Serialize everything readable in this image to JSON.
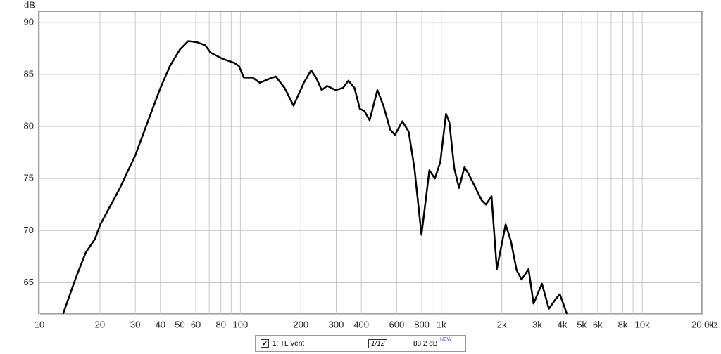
{
  "chart_data": {
    "type": "line",
    "y_label": "dB",
    "x_label": "Hz",
    "xlim": [
      10,
      20000
    ],
    "ylim": [
      62,
      91
    ],
    "log_x": true,
    "grid": true,
    "yticks": [
      65,
      70,
      75,
      80,
      85,
      90
    ],
    "xticks": [
      10,
      20,
      30,
      40,
      50,
      60,
      80,
      100,
      200,
      300,
      400,
      600,
      800,
      {
        "value": 1000,
        "label": "1k"
      },
      {
        "value": 2000,
        "label": "2k"
      },
      {
        "value": 3000,
        "label": "3k"
      },
      {
        "value": 4000,
        "label": "4k"
      },
      {
        "value": 5000,
        "label": "5k"
      },
      {
        "value": 6000,
        "label": "6k"
      },
      {
        "value": 8000,
        "label": "8k"
      },
      {
        "value": 10000,
        "label": "10k"
      },
      {
        "value": 20000,
        "label": "20.0k"
      }
    ],
    "x_minor_gridlines": [
      70,
      90,
      700,
      900,
      7000,
      9000
    ],
    "series": [
      {
        "name": "1: TL Vent",
        "color": "#000000",
        "x": [
          13.1,
          15.2,
          17,
          18.9,
          20.1,
          25,
          30.1,
          34.5,
          40,
          44.6,
          50,
          55,
          60.7,
          66.8,
          71,
          81.5,
          93.5,
          98.5,
          104,
          115,
          125,
          140,
          150,
          166,
          184,
          207,
          225,
          238,
          254,
          270,
          298,
          324,
          345,
          370,
          393,
          414,
          440,
          481,
          515,
          557,
          588,
          640,
          688,
          735,
          797,
          872,
          929,
          989,
          1055,
          1097,
          1160,
          1225,
          1305,
          1380,
          1490,
          1590,
          1668,
          1778,
          1890,
          2090,
          2220,
          2370,
          2510,
          2720,
          2880,
          3170,
          3430,
          3730,
          3890,
          4220
        ],
        "values": [
          62.0,
          65.5,
          67.9,
          69.2,
          70.6,
          74.0,
          77.3,
          80.4,
          83.7,
          85.8,
          87.4,
          88.2,
          88.1,
          87.8,
          87.1,
          86.5,
          86.1,
          85.8,
          84.7,
          84.7,
          84.2,
          84.6,
          84.8,
          83.7,
          82.0,
          84.2,
          85.4,
          84.7,
          83.5,
          83.9,
          83.5,
          83.7,
          84.4,
          83.7,
          81.7,
          81.5,
          80.6,
          83.5,
          82.0,
          79.7,
          79.2,
          80.5,
          79.5,
          76.0,
          69.6,
          75.8,
          75.0,
          76.6,
          81.2,
          80.4,
          76.0,
          74.1,
          76.1,
          75.3,
          74.0,
          72.9,
          72.5,
          73.3,
          66.3,
          70.6,
          69.0,
          66.2,
          65.3,
          66.3,
          63.0,
          64.9,
          62.5,
          63.5,
          63.9,
          62.0
        ]
      }
    ],
    "legend": {
      "checked": true,
      "label": "1: TL Vent",
      "smoothing": "1/12",
      "level": "88.2 dB",
      "badge": "NEW"
    }
  }
}
